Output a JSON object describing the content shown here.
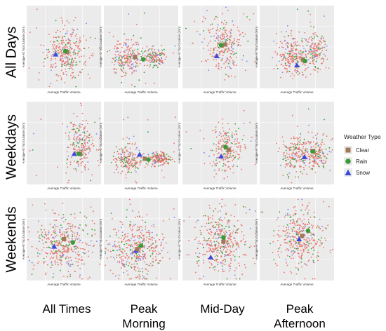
{
  "figure": {
    "row_labels": [
      "All Days",
      "Weekdays",
      "Weekends"
    ],
    "col_labels": [
      [
        "All Times"
      ],
      [
        "Peak",
        "Morning"
      ],
      [
        "Mid-Day"
      ],
      [
        "Peak",
        "Afternoon"
      ]
    ],
    "legend": {
      "title": "Weather Type",
      "items": [
        {
          "label": "Clear",
          "shape": "square",
          "color": "#a0785a"
        },
        {
          "label": "Rain",
          "shape": "circle",
          "color": "#3a9a3a"
        },
        {
          "label": "Snow",
          "shape": "triangle",
          "color": "#3b4bdc"
        }
      ]
    },
    "point_colors": {
      "clear": "#e8746c",
      "rain": "#2ca32c",
      "snow": "#7a86f0",
      "clear_avg": "#a0785a",
      "rain_avg": "#3a9a3a",
      "snow_avg": "#3b4bdc"
    },
    "panel_background": "#ebebeb",
    "gridline_color": "#ffffff"
  },
  "chart_data": [
    {
      "type": "scatter",
      "panel": "All Days / All Times",
      "xlabel": "Average Traffic Volume",
      "ylabel": "Average All Trip Duration (min)",
      "clusters": [
        {
          "x": 0.52,
          "y": 0.57,
          "sx": 0.14,
          "sy": 0.16
        }
      ],
      "means": {
        "clear": [
          0.54,
          0.56
        ],
        "rain": [
          0.52,
          0.55
        ],
        "snow": [
          0.39,
          0.59
        ]
      }
    },
    {
      "type": "scatter",
      "panel": "All Days / Peak Morning",
      "xlabel": "Average Traffic Volume",
      "ylabel": "Average All Trip Duration (min)",
      "clusters": [
        {
          "x": 0.3,
          "y": 0.63,
          "sx": 0.1,
          "sy": 0.12
        },
        {
          "x": 0.68,
          "y": 0.63,
          "sx": 0.07,
          "sy": 0.05
        }
      ],
      "means": {
        "clear": [
          0.42,
          0.62
        ],
        "rain": [
          0.53,
          0.65
        ],
        "snow": [
          0.42,
          0.62
        ]
      }
    },
    {
      "type": "scatter",
      "panel": "All Days / Mid-Day",
      "xlabel": "Average Traffic Volume",
      "ylabel": "Average All Trip Duration (min)",
      "clusters": [
        {
          "x": 0.55,
          "y": 0.48,
          "sx": 0.12,
          "sy": 0.16
        }
      ],
      "means": {
        "clear": [
          0.57,
          0.47
        ],
        "rain": [
          0.52,
          0.48
        ],
        "snow": [
          0.46,
          0.61
        ]
      }
    },
    {
      "type": "scatter",
      "panel": "All Days / Peak Afternoon",
      "xlabel": "Average Traffic Volume",
      "ylabel": "Average All Trip Duration (min)",
      "clusters": [
        {
          "x": 0.42,
          "y": 0.62,
          "sx": 0.1,
          "sy": 0.12
        },
        {
          "x": 0.73,
          "y": 0.55,
          "sx": 0.08,
          "sy": 0.1
        }
      ],
      "means": {
        "clear": [
          0.58,
          0.65
        ],
        "rain": [
          0.61,
          0.67
        ],
        "snow": [
          0.5,
          0.72
        ]
      }
    },
    {
      "type": "scatter",
      "panel": "Weekdays / All Times",
      "xlabel": "Average Traffic Volume",
      "ylabel": "Average All Trip Duration (min)",
      "clusters": [
        {
          "x": 0.72,
          "y": 0.55,
          "sx": 0.1,
          "sy": 0.16
        }
      ],
      "means": {
        "clear": [
          0.72,
          0.63
        ],
        "rain": [
          0.7,
          0.63
        ],
        "snow": [
          0.64,
          0.63
        ]
      }
    },
    {
      "type": "scatter",
      "panel": "Weekdays / Peak Morning",
      "xlabel": "Average Traffic Volume",
      "ylabel": "Average All Trip Duration (min)",
      "clusters": [
        {
          "x": 0.33,
          "y": 0.7,
          "sx": 0.09,
          "sy": 0.09
        },
        {
          "x": 0.75,
          "y": 0.69,
          "sx": 0.08,
          "sy": 0.04
        }
      ],
      "means": {
        "clear": [
          0.55,
          0.69
        ],
        "rain": [
          0.6,
          0.7
        ],
        "snow": [
          0.48,
          0.64
        ]
      }
    },
    {
      "type": "scatter",
      "panel": "Weekdays / Mid-Day",
      "xlabel": "Average Traffic Volume",
      "ylabel": "Average All Trip Duration (min)",
      "clusters": [
        {
          "x": 0.6,
          "y": 0.58,
          "sx": 0.1,
          "sy": 0.14
        }
      ],
      "means": {
        "clear": [
          0.62,
          0.58
        ],
        "rain": [
          0.58,
          0.55
        ],
        "snow": [
          0.52,
          0.66
        ]
      }
    },
    {
      "type": "scatter",
      "panel": "Weekdays / Peak Afternoon",
      "xlabel": "Average Traffic Volume",
      "ylabel": "Average All Trip Duration (min)",
      "clusters": [
        {
          "x": 0.5,
          "y": 0.64,
          "sx": 0.1,
          "sy": 0.12
        },
        {
          "x": 0.78,
          "y": 0.62,
          "sx": 0.07,
          "sy": 0.1
        }
      ],
      "means": {
        "clear": [
          0.72,
          0.6
        ],
        "rain": [
          0.71,
          0.6
        ],
        "snow": [
          0.6,
          0.67
        ]
      }
    },
    {
      "type": "scatter",
      "panel": "Weekends / All Times",
      "xlabel": "Average Traffic Volume",
      "ylabel": "Average All Trip Duration (min)",
      "clusters": [
        {
          "x": 0.48,
          "y": 0.57,
          "sx": 0.18,
          "sy": 0.18
        }
      ],
      "means": {
        "clear": [
          0.5,
          0.5
        ],
        "rain": [
          0.62,
          0.54
        ],
        "snow": [
          0.37,
          0.59
        ]
      }
    },
    {
      "type": "scatter",
      "panel": "Weekends / Peak Morning",
      "xlabel": "Average Traffic Volume",
      "ylabel": "Average All Trip Duration (min)",
      "clusters": [
        {
          "x": 0.45,
          "y": 0.62,
          "sx": 0.18,
          "sy": 0.18
        }
      ],
      "means": {
        "clear": [
          0.45,
          0.62
        ],
        "rain": [
          0.5,
          0.58
        ],
        "snow": [
          0.43,
          0.64
        ]
      }
    },
    {
      "type": "scatter",
      "panel": "Weekends / Mid-Day",
      "xlabel": "Average Traffic Volume",
      "ylabel": "Average All Trip Duration (min)",
      "clusters": [
        {
          "x": 0.52,
          "y": 0.55,
          "sx": 0.18,
          "sy": 0.18
        }
      ],
      "means": {
        "clear": [
          0.55,
          0.53
        ],
        "rain": [
          0.55,
          0.48
        ],
        "snow": [
          0.38,
          0.72
        ]
      }
    },
    {
      "type": "scatter",
      "panel": "Weekends / Peak Afternoon",
      "xlabel": "Average Traffic Volume",
      "ylabel": "Average All Trip Duration (min)",
      "clusters": [
        {
          "x": 0.55,
          "y": 0.48,
          "sx": 0.16,
          "sy": 0.18
        }
      ],
      "means": {
        "clear": [
          0.57,
          0.46
        ],
        "rain": [
          0.65,
          0.4
        ],
        "snow": [
          0.53,
          0.5
        ]
      }
    }
  ]
}
